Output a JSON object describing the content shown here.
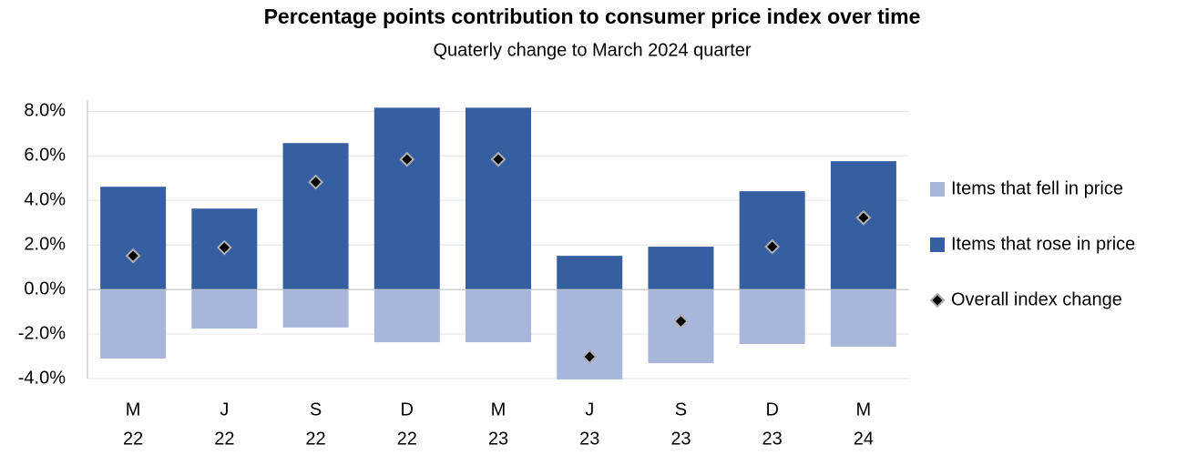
{
  "chart_data": {
    "type": "bar",
    "title": "Percentage points contribution to consumer price index over time",
    "subtitle": "Quaterly change to March 2024 quarter",
    "categories": [
      [
        "M",
        "22"
      ],
      [
        "J",
        "22"
      ],
      [
        "S",
        "22"
      ],
      [
        "D",
        "22"
      ],
      [
        "M",
        "23"
      ],
      [
        "J",
        "23"
      ],
      [
        "S",
        "23"
      ],
      [
        "D",
        "23"
      ],
      [
        "M",
        "24"
      ]
    ],
    "series": [
      {
        "name": "Items that fell in price",
        "color": "#a9b6dc",
        "type": "bar",
        "values": [
          -3.1,
          -1.76,
          -1.71,
          -2.37,
          -2.37,
          -4.04,
          -3.31,
          -2.45,
          -2.57
        ]
      },
      {
        "name": "Items that rose in price",
        "color": "#355fa0",
        "type": "bar",
        "values": [
          4.61,
          3.63,
          6.57,
          8.16,
          8.16,
          1.51,
          1.92,
          4.41,
          5.76
        ]
      },
      {
        "name": "Overall index change",
        "color": "#000000",
        "type": "marker",
        "values": [
          1.51,
          1.88,
          4.82,
          5.84,
          5.84,
          -3.02,
          -1.43,
          1.92,
          3.22
        ]
      }
    ],
    "ylim": [
      -4,
      8.5
    ],
    "yticks": [
      {
        "value": -4,
        "label": "-4.0%"
      },
      {
        "value": -2,
        "label": "-2.0%"
      },
      {
        "value": 0,
        "label": "0.0%"
      },
      {
        "value": 2,
        "label": "2.0%"
      },
      {
        "value": 4,
        "label": "4.0%"
      },
      {
        "value": 6,
        "label": "6.0%"
      },
      {
        "value": 8,
        "label": "8.0%"
      }
    ],
    "grid": true,
    "legend": "right"
  }
}
